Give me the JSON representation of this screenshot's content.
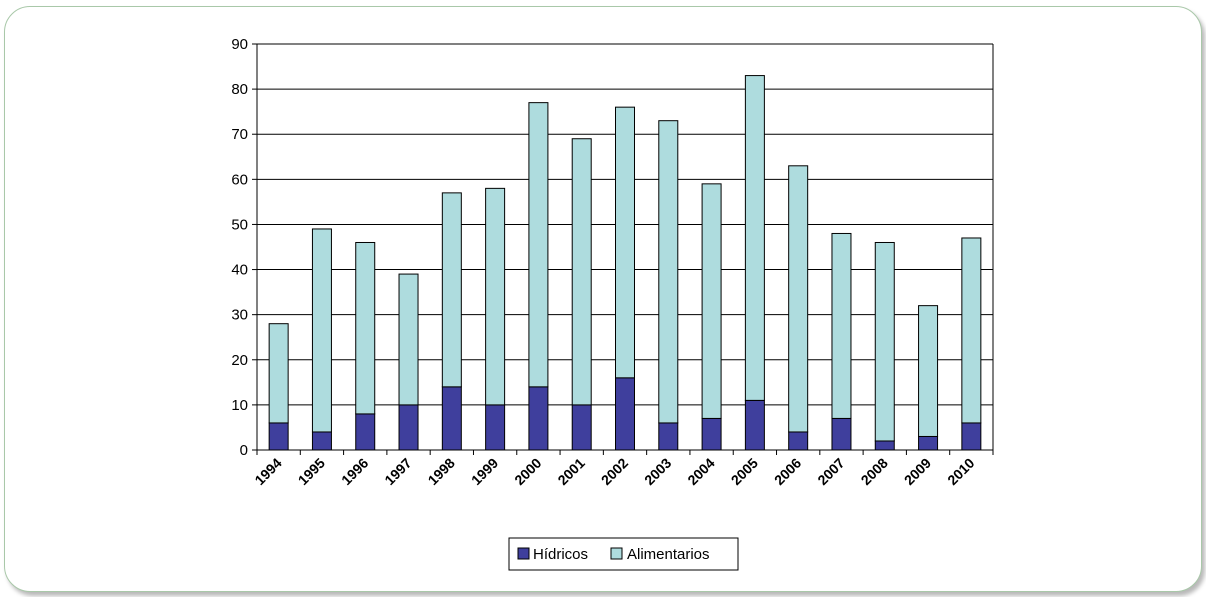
{
  "chart_data": {
    "type": "bar",
    "stacked": true,
    "categories": [
      "1994",
      "1995",
      "1996",
      "1997",
      "1998",
      "1999",
      "2000",
      "2001",
      "2002",
      "2003",
      "2004",
      "2005",
      "2006",
      "2007",
      "2008",
      "2009",
      "2010"
    ],
    "series": [
      {
        "name": "Hídricos",
        "color": "#3f3f9d",
        "values": [
          6,
          4,
          8,
          10,
          14,
          10,
          14,
          10,
          16,
          6,
          7,
          11,
          4,
          7,
          2,
          3,
          6
        ]
      },
      {
        "name": "Alimentarios",
        "color": "#aedcde",
        "values": [
          22,
          45,
          38,
          29,
          43,
          48,
          63,
          59,
          60,
          67,
          52,
          72,
          59,
          41,
          44,
          29,
          41
        ]
      }
    ],
    "totals": [
      28,
      49,
      46,
      39,
      57,
      58,
      77,
      69,
      76,
      73,
      59,
      83,
      63,
      48,
      46,
      32,
      47
    ],
    "ylim": [
      0,
      90
    ],
    "yticks": [
      0,
      10,
      20,
      30,
      40,
      50,
      60,
      70,
      80,
      90
    ],
    "ytick_labels": [
      "0",
      "10",
      "20",
      "30",
      "40",
      "50",
      "60",
      "70",
      "80",
      "90"
    ],
    "grid": true,
    "legend_position": "bottom"
  }
}
